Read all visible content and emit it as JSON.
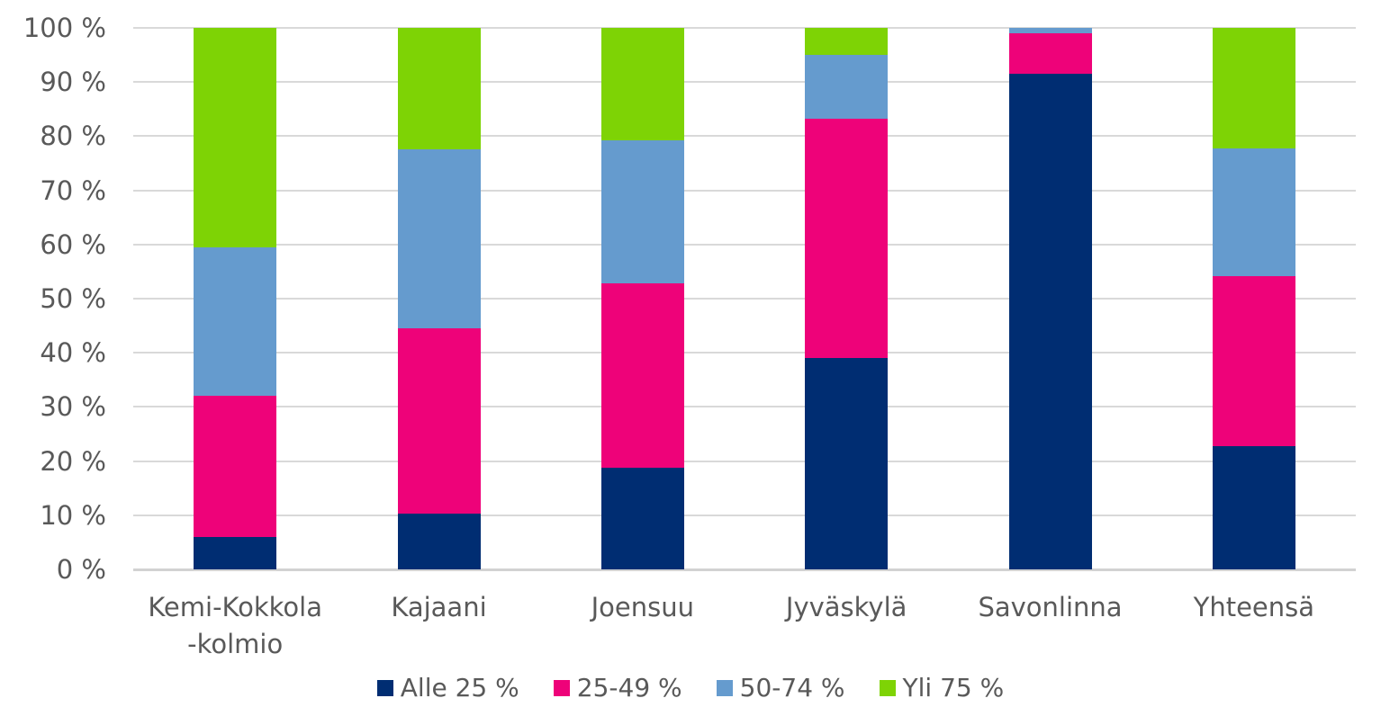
{
  "chart_data": {
    "type": "bar",
    "stacked": true,
    "percent_stacked": true,
    "title": "",
    "xlabel": "",
    "ylabel": "",
    "unit": "%",
    "grid": true,
    "legend_position": "bottom",
    "categories": [
      "Kemi-Kokkola\n-kolmio",
      "Kajaani",
      "Joensuu",
      "Jyväskylä",
      "Savonlinna",
      "Yhteensä"
    ],
    "series": [
      {
        "name": "Alle 25 %",
        "color": "#002d72",
        "values": [
          6.0,
          10.3,
          18.8,
          39.1,
          91.6,
          22.8
        ]
      },
      {
        "name": "25-49 %",
        "color": "#ee0279",
        "values": [
          26.0,
          34.2,
          34.0,
          44.2,
          7.4,
          31.4
        ]
      },
      {
        "name": "50-74 %",
        "color": "#659bce",
        "values": [
          27.5,
          33.1,
          26.4,
          11.7,
          1.0,
          23.6
        ]
      },
      {
        "name": "Yli 75 %",
        "color": "#7ed305",
        "values": [
          40.5,
          22.4,
          20.8,
          5.0,
          0.0,
          22.2
        ]
      }
    ],
    "y_axis": {
      "min": 0,
      "max": 100,
      "step": 10,
      "tick_labels": [
        "0 %",
        "10 %",
        "20 %",
        "30 %",
        "40 %",
        "50 %",
        "60 %",
        "70 %",
        "80 %",
        "90 %",
        "100 %"
      ]
    },
    "colors": {
      "axis_text": "#595959",
      "gridline": "#d9d9d9",
      "background": "#ffffff"
    }
  }
}
